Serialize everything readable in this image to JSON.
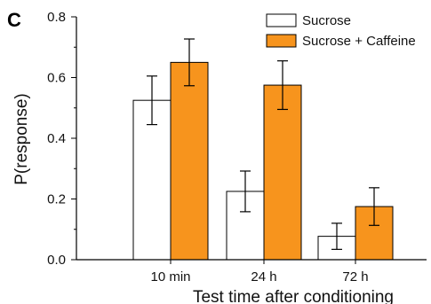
{
  "panel_label": "C",
  "chart_data": {
    "type": "bar",
    "title": "",
    "xlabel": "Test time after conditioning",
    "ylabel": "P(response)",
    "ylim": [
      0,
      0.8
    ],
    "yticks": [
      "0.0",
      "0.2",
      "0.4",
      "0.6",
      "0.8"
    ],
    "categories": [
      "10 min",
      "24 h",
      "72 h"
    ],
    "grid": false,
    "legend_position": "top-right",
    "series": [
      {
        "name": "Sucrose",
        "values": [
          0.525,
          0.225,
          0.077
        ],
        "errors": [
          0.08,
          0.067,
          0.043
        ],
        "color": "#ffffff"
      },
      {
        "name": "Sucrose + Caffeine",
        "values": [
          0.65,
          0.575,
          0.175
        ],
        "errors": [
          0.077,
          0.08,
          0.062
        ],
        "color": "#f7941d"
      }
    ]
  }
}
